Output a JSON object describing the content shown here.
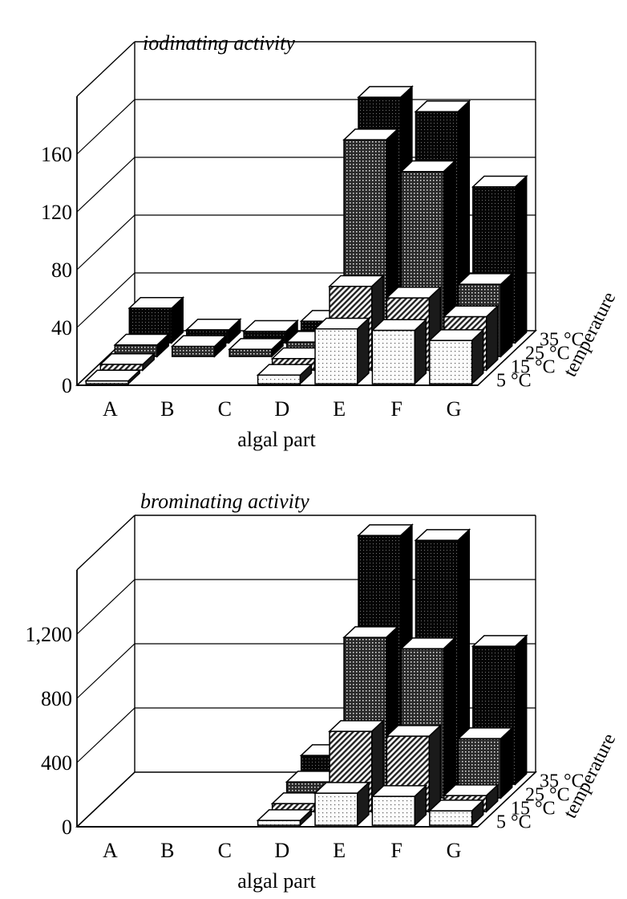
{
  "chart_data": [
    {
      "type": "bar",
      "title": "iodinating activity",
      "xlabel": "algal part",
      "depth_label": "temperature",
      "categories": [
        "A",
        "B",
        "C",
        "D",
        "E",
        "F",
        "G"
      ],
      "y_ticks": [
        "0",
        "40",
        "80",
        "120",
        "160"
      ],
      "y_tick_values": [
        0,
        40,
        80,
        120,
        160
      ],
      "ylim": [
        0,
        200
      ],
      "grid": true,
      "series": [
        {
          "name": "5 °C",
          "values": [
            2,
            0,
            0,
            6,
            38,
            37,
            30
          ]
        },
        {
          "name": "15 °C",
          "values": [
            4,
            0,
            0,
            8,
            58,
            50,
            37
          ]
        },
        {
          "name": "25 °C",
          "values": [
            8,
            7,
            5,
            10,
            150,
            128,
            50
          ]
        },
        {
          "name": "35 °C",
          "values": [
            24,
            9,
            8,
            15,
            170,
            160,
            108
          ]
        }
      ],
      "colors": {
        "5 °C": "#f4f4f4",
        "15 °C": "#b0b0b0",
        "25 °C": "#5a5a5a",
        "35 °C": "#1a1a1a"
      }
    },
    {
      "type": "bar",
      "title": "brominating activity",
      "xlabel": "algal part",
      "depth_label": "temperature",
      "categories": [
        "A",
        "B",
        "C",
        "D",
        "E",
        "F",
        "G"
      ],
      "y_ticks": [
        "0",
        "400",
        "800",
        "1,200"
      ],
      "y_tick_values": [
        0,
        400,
        800,
        1200
      ],
      "ylim": [
        0,
        1600
      ],
      "grid": true,
      "series": [
        {
          "name": "5 °C",
          "values": [
            0,
            0,
            0,
            30,
            200,
            180,
            90
          ]
        },
        {
          "name": "15 °C",
          "values": [
            0,
            0,
            0,
            50,
            500,
            470,
            100
          ]
        },
        {
          "name": "25 °C",
          "values": [
            0,
            0,
            0,
            100,
            1000,
            930,
            370
          ]
        },
        {
          "name": "35 °C",
          "values": [
            0,
            0,
            0,
            180,
            1550,
            1520,
            860
          ]
        }
      ],
      "colors": {
        "5 °C": "#f4f4f4",
        "15 °C": "#b0b0b0",
        "25 °C": "#5a5a5a",
        "35 °C": "#1a1a1a"
      }
    }
  ]
}
